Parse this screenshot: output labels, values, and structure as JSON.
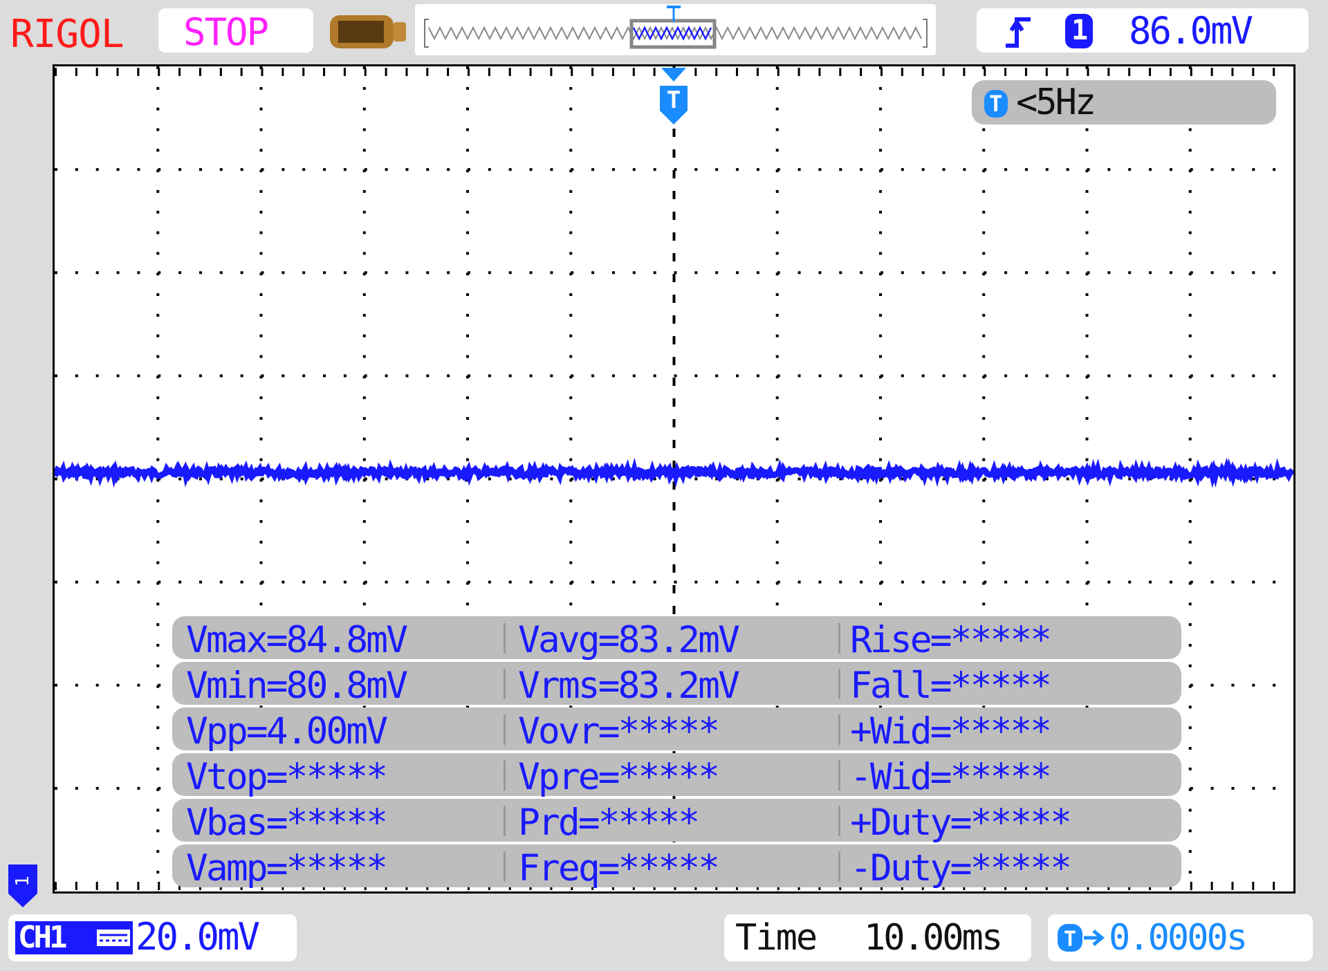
{
  "header": {
    "brand": "RIGOL",
    "run_state": "STOP",
    "trigger": {
      "edge_icon": "rising-edge-icon",
      "source": "1",
      "level": "86.0mV"
    }
  },
  "screen": {
    "trigger_frequency": "<5Hz",
    "trigger_marker": "T",
    "trace_level_mV": 83.2,
    "trace_color": "#1a1aff",
    "measurements": [
      [
        "Vmax=84.8mV",
        "Vavg=83.2mV",
        "Rise=*****"
      ],
      [
        "Vmin=80.8mV",
        "Vrms=83.2mV",
        "Fall=*****"
      ],
      [
        "Vpp=4.00mV",
        "Vovr=*****",
        "+Wid=*****"
      ],
      [
        "Vtop=*****",
        "Vpre=*****",
        "-Wid=*****"
      ],
      [
        "Vbas=*****",
        "Prd=*****",
        "+Duty=*****"
      ],
      [
        "Vamp=*****",
        "Freq=*****",
        "-Duty=*****"
      ]
    ]
  },
  "footer": {
    "channel": "CH1",
    "volts_per_div": "20.0mV",
    "time_label": "Time",
    "time_per_div": "10.00ms",
    "trigger_offset": "0.0000s",
    "channel_marker": "1"
  }
}
